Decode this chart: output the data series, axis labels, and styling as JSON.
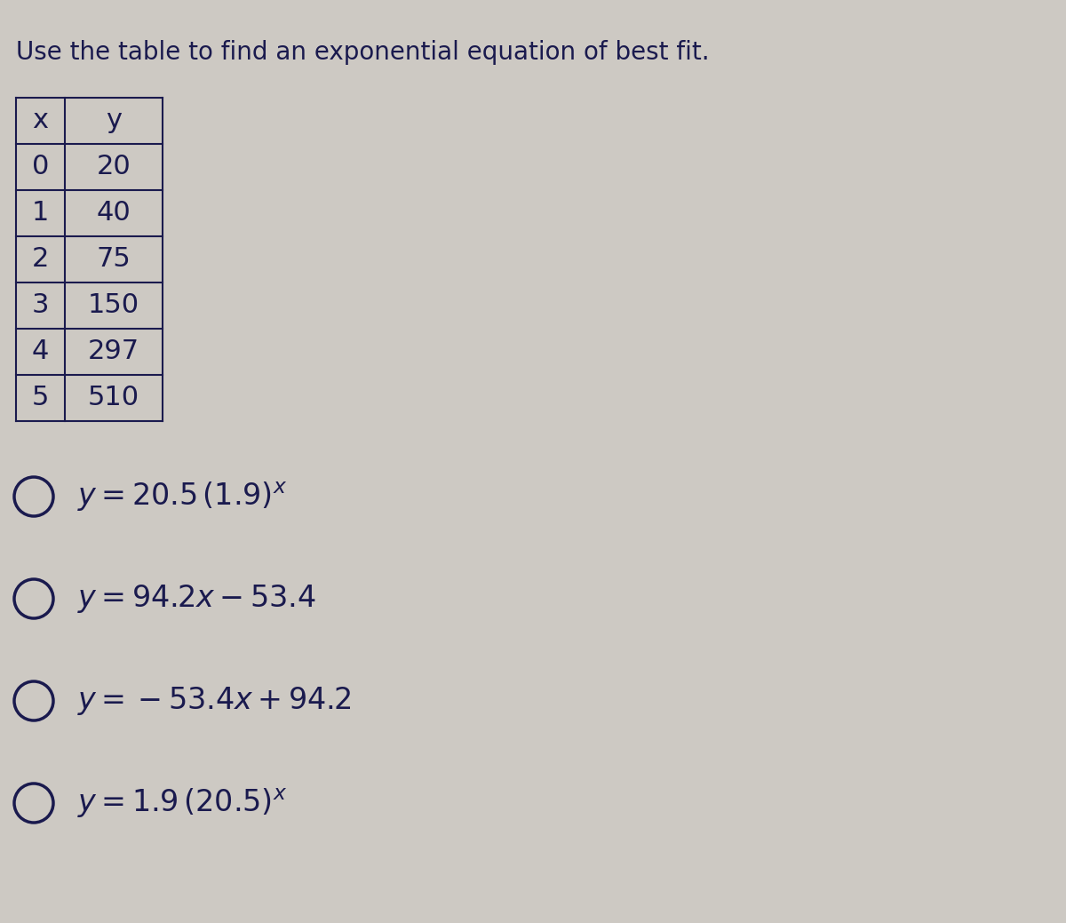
{
  "title": "Use the table to find an exponential equation of best fit.",
  "title_fontsize": 20,
  "bg_color": "#cdc9c3",
  "table_x_vals": [
    "x",
    "0",
    "1",
    "2",
    "3",
    "4",
    "5"
  ],
  "table_y_vals": [
    "y",
    "20",
    "40",
    "75",
    "150",
    "297",
    "510"
  ],
  "options_math": [
    "y = 20.5\\,(1.9)^{x}",
    "y = 94.2x - 53.4",
    "y = -53.4x + 94.2",
    "y = 1.9\\,(20.5)^{x}"
  ],
  "options_plain": [
    "y = 20.5 (1.9)",
    "y = 94.2x − 53.4",
    "y = −53.4x + 94.2",
    "y = 1.9 (20.5)"
  ],
  "option_fontsize": 24,
  "text_color": "#1a1a4e",
  "table_border_color": "#1a1a4e",
  "table_font_size": 22,
  "circle_linewidth": 2.5
}
